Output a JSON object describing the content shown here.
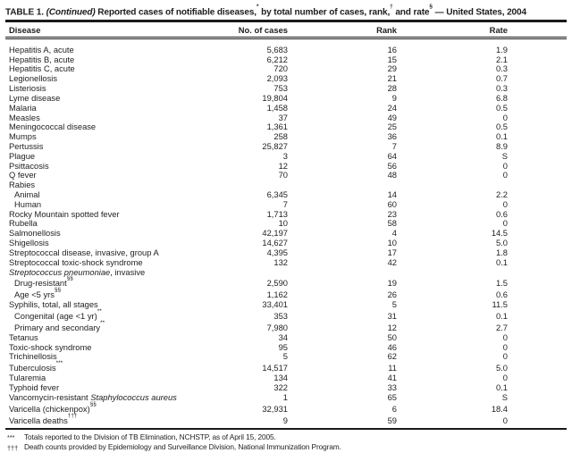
{
  "title": {
    "label": "TABLE 1. ",
    "continued": "(Continued)",
    "part1": " Reported cases of notifiable diseases,",
    "sup_star": "*",
    "part2": " by total number of cases, rank,",
    "sup_dagger": "†",
    "part3": " and rate",
    "sup_section": "§",
    "part4": " — United States, 2004"
  },
  "columns": {
    "disease": "Disease",
    "cases": "No. of cases",
    "rank": "Rank",
    "rate": "Rate"
  },
  "colors": {
    "background": "#ffffff",
    "text": "#1e1e1e",
    "rule": "#1a1a1a"
  },
  "table": {
    "rows": [
      {
        "name": [
          {
            "t": "Hepatitis A, acute"
          }
        ],
        "sup": "",
        "indent": false,
        "cases": "5,683",
        "rank": "16",
        "rate": "1.9"
      },
      {
        "name": [
          {
            "t": "Hepatitis B, acute"
          }
        ],
        "sup": "",
        "indent": false,
        "cases": "6,212",
        "rank": "15",
        "rate": "2.1"
      },
      {
        "name": [
          {
            "t": "Hepatitis C, acute"
          }
        ],
        "sup": "",
        "indent": false,
        "cases": "720",
        "rank": "29",
        "rate": "0.3"
      },
      {
        "name": [
          {
            "t": "Legionellosis"
          }
        ],
        "sup": "",
        "indent": false,
        "cases": "2,093",
        "rank": "21",
        "rate": "0.7"
      },
      {
        "name": [
          {
            "t": "Listeriosis"
          }
        ],
        "sup": "",
        "indent": false,
        "cases": "753",
        "rank": "28",
        "rate": "0.3"
      },
      {
        "name": [
          {
            "t": "Lyme disease"
          }
        ],
        "sup": "",
        "indent": false,
        "cases": "19,804",
        "rank": "9",
        "rate": "6.8"
      },
      {
        "name": [
          {
            "t": "Malaria"
          }
        ],
        "sup": "",
        "indent": false,
        "cases": "1,458",
        "rank": "24",
        "rate": "0.5"
      },
      {
        "name": [
          {
            "t": "Measles"
          }
        ],
        "sup": "",
        "indent": false,
        "cases": "37",
        "rank": "49",
        "rate": "0"
      },
      {
        "name": [
          {
            "t": "Meningococcal disease"
          }
        ],
        "sup": "",
        "indent": false,
        "cases": "1,361",
        "rank": "25",
        "rate": "0.5"
      },
      {
        "name": [
          {
            "t": "Mumps"
          }
        ],
        "sup": "",
        "indent": false,
        "cases": "258",
        "rank": "36",
        "rate": "0.1"
      },
      {
        "name": [
          {
            "t": "Pertussis"
          }
        ],
        "sup": "",
        "indent": false,
        "cases": "25,827",
        "rank": "7",
        "rate": "8.9"
      },
      {
        "name": [
          {
            "t": "Plague"
          }
        ],
        "sup": "",
        "indent": false,
        "cases": "3",
        "rank": "64",
        "rate": "S"
      },
      {
        "name": [
          {
            "t": "Psittacosis"
          }
        ],
        "sup": "",
        "indent": false,
        "cases": "12",
        "rank": "56",
        "rate": "0"
      },
      {
        "name": [
          {
            "t": "Q fever"
          }
        ],
        "sup": "",
        "indent": false,
        "cases": "70",
        "rank": "48",
        "rate": "0"
      },
      {
        "name": [
          {
            "t": "Rabies"
          }
        ],
        "sup": "",
        "indent": false,
        "cases": "",
        "rank": "",
        "rate": ""
      },
      {
        "name": [
          {
            "t": "Animal"
          }
        ],
        "sup": "",
        "indent": true,
        "cases": "6,345",
        "rank": "14",
        "rate": "2.2"
      },
      {
        "name": [
          {
            "t": "Human"
          }
        ],
        "sup": "",
        "indent": true,
        "cases": "7",
        "rank": "60",
        "rate": "0"
      },
      {
        "name": [
          {
            "t": "Rocky Mountain spotted fever"
          }
        ],
        "sup": "",
        "indent": false,
        "cases": "1,713",
        "rank": "23",
        "rate": "0.6"
      },
      {
        "name": [
          {
            "t": "Rubella"
          }
        ],
        "sup": "",
        "indent": false,
        "cases": "10",
        "rank": "58",
        "rate": "0"
      },
      {
        "name": [
          {
            "t": "Salmonellosis"
          }
        ],
        "sup": "",
        "indent": false,
        "cases": "42,197",
        "rank": "4",
        "rate": "14.5"
      },
      {
        "name": [
          {
            "t": "Shigellosis"
          }
        ],
        "sup": "",
        "indent": false,
        "cases": "14,627",
        "rank": "10",
        "rate": "5.0"
      },
      {
        "name": [
          {
            "t": "Streptococcal disease, invasive, group A"
          }
        ],
        "sup": "",
        "indent": false,
        "cases": "4,395",
        "rank": "17",
        "rate": "1.8"
      },
      {
        "name": [
          {
            "t": "Streptococcal toxic-shock syndrome"
          }
        ],
        "sup": "",
        "indent": false,
        "cases": "132",
        "rank": "42",
        "rate": "0.1"
      },
      {
        "name": [
          {
            "t": "Streptococcus pneumoniae",
            "i": true
          },
          {
            "t": ", invasive"
          }
        ],
        "sup": "",
        "indent": false,
        "cases": "",
        "rank": "",
        "rate": ""
      },
      {
        "name": [
          {
            "t": "Drug-resistant"
          }
        ],
        "sup": "§§",
        "indent": true,
        "cases": "2,590",
        "rank": "19",
        "rate": "1.5"
      },
      {
        "name": [
          {
            "t": "Age <5 yrs"
          }
        ],
        "sup": "§§",
        "indent": true,
        "cases": "1,162",
        "rank": "26",
        "rate": "0.6"
      },
      {
        "name": [
          {
            "t": "Syphilis, total, all stages"
          }
        ],
        "sup": "",
        "indent": false,
        "cases": "33,401",
        "rank": "5",
        "rate": "11.5"
      },
      {
        "name": [
          {
            "t": "Congenital (age <1 yr)"
          }
        ],
        "sup": "**",
        "indent": true,
        "cases": "353",
        "rank": "31",
        "rate": "0.1"
      },
      {
        "name": [
          {
            "t": "Primary and secondary"
          }
        ],
        "sup": "**",
        "indent": true,
        "cases": "7,980",
        "rank": "12",
        "rate": "2.7"
      },
      {
        "name": [
          {
            "t": "Tetanus"
          }
        ],
        "sup": "",
        "indent": false,
        "cases": "34",
        "rank": "50",
        "rate": "0"
      },
      {
        "name": [
          {
            "t": "Toxic-shock syndrome"
          }
        ],
        "sup": "",
        "indent": false,
        "cases": "95",
        "rank": "46",
        "rate": "0"
      },
      {
        "name": [
          {
            "t": "Trichinellosis"
          }
        ],
        "sup": "",
        "indent": false,
        "cases": "5",
        "rank": "62",
        "rate": "0"
      },
      {
        "name": [
          {
            "t": "Tuberculosis"
          }
        ],
        "sup": "***",
        "indent": false,
        "cases": "14,517",
        "rank": "11",
        "rate": "5.0"
      },
      {
        "name": [
          {
            "t": "Tularemia"
          }
        ],
        "sup": "",
        "indent": false,
        "cases": "134",
        "rank": "41",
        "rate": "0"
      },
      {
        "name": [
          {
            "t": "Typhoid fever"
          }
        ],
        "sup": "",
        "indent": false,
        "cases": "322",
        "rank": "33",
        "rate": "0.1"
      },
      {
        "name": [
          {
            "t": "Vancomycin-resistant "
          },
          {
            "t": "Staphylococcus aureus",
            "i": true
          }
        ],
        "sup": "",
        "indent": false,
        "cases": "1",
        "rank": "65",
        "rate": "S"
      },
      {
        "name": [
          {
            "t": "Varicella (chickenpox)"
          }
        ],
        "sup": "§§",
        "indent": false,
        "cases": "32,931",
        "rank": "6",
        "rate": "18.4"
      },
      {
        "name": [
          {
            "t": "Varicella deaths"
          }
        ],
        "sup": "†††",
        "indent": false,
        "cases": "9",
        "rank": "59",
        "rate": "0"
      }
    ]
  },
  "footnotes": [
    {
      "marker": "***",
      "text": "Totals reported to the Division of TB Elimination, NCHSTP, as of April 15, 2005."
    },
    {
      "marker": "†††",
      "text": "Death counts provided by Epidemiology and Surveillance Division, National Immunization Program."
    }
  ]
}
